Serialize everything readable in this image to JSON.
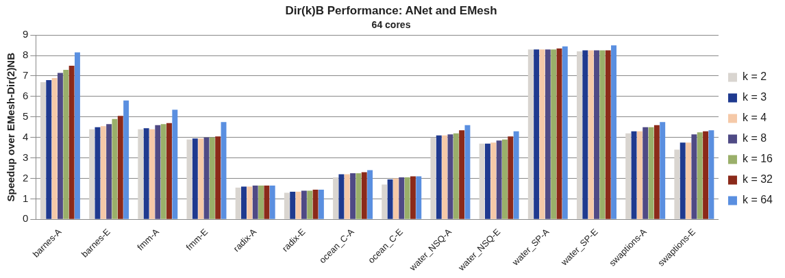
{
  "chart_data": {
    "type": "bar",
    "title": "Dir(k)B Performance: ANet and EMesh",
    "subtitle": "64 cores",
    "ylabel": "Speedup over EMesh-Dir(2)NB",
    "categories": [
      "barnes-A",
      "barnes-E",
      "fmm-A",
      "fmm-E",
      "radix-A",
      "radix-E",
      "ocean_C-A",
      "ocean_C-E",
      "water_NSQ-A",
      "water_NSQ-E",
      "water_SP-A",
      "water_SP-E",
      "swaptions-A",
      "swaptions-E"
    ],
    "series": [
      {
        "name": "k = 2",
        "color": "#d9d5d0",
        "values": [
          6.7,
          4.4,
          4.4,
          3.9,
          1.55,
          1.3,
          2.05,
          1.7,
          4.0,
          3.7,
          8.3,
          8.2,
          4.2,
          3.4
        ]
      },
      {
        "name": "k = 3",
        "color": "#1f3a8f",
        "values": [
          6.8,
          4.5,
          4.45,
          3.95,
          1.6,
          1.35,
          2.2,
          1.95,
          4.1,
          3.7,
          8.3,
          8.25,
          4.3,
          3.75
        ]
      },
      {
        "name": "k = 4",
        "color": "#f5c9a8",
        "values": [
          6.9,
          4.55,
          4.4,
          3.95,
          1.6,
          1.35,
          2.2,
          2.0,
          4.1,
          3.75,
          8.3,
          8.25,
          4.3,
          3.75
        ]
      },
      {
        "name": "k = 8",
        "color": "#4f4a85",
        "values": [
          7.15,
          4.65,
          4.6,
          4.0,
          1.65,
          1.4,
          2.25,
          2.05,
          4.15,
          3.85,
          8.3,
          8.25,
          4.5,
          4.15
        ]
      },
      {
        "name": "k = 16",
        "color": "#9aaf6a",
        "values": [
          7.3,
          4.9,
          4.65,
          4.0,
          1.65,
          1.4,
          2.25,
          2.05,
          4.2,
          3.9,
          8.3,
          8.25,
          4.5,
          4.25
        ]
      },
      {
        "name": "k = 32",
        "color": "#8b2a1a",
        "values": [
          7.5,
          5.05,
          4.7,
          4.05,
          1.65,
          1.45,
          2.3,
          2.1,
          4.35,
          4.05,
          8.35,
          8.25,
          4.6,
          4.3
        ]
      },
      {
        "name": "k = 64",
        "color": "#5a8fe0",
        "values": [
          8.15,
          5.8,
          5.35,
          4.75,
          1.65,
          1.45,
          2.4,
          2.1,
          4.6,
          4.3,
          8.45,
          8.5,
          4.75,
          4.35
        ]
      }
    ],
    "ylim": [
      0,
      9
    ],
    "yticks": [
      0,
      1,
      2,
      3,
      4,
      5,
      6,
      7,
      8,
      9
    ],
    "grid": "y",
    "legend": "right"
  }
}
